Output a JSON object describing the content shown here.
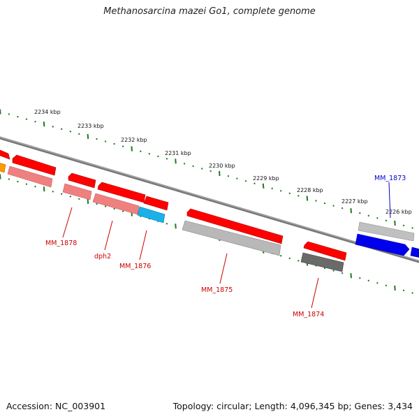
{
  "title": "Methanosarcina mazei Go1, complete genome",
  "footer": {
    "accession": "Accession: NC_003901",
    "summary": "Topology: circular; Length: 4,096,345 bp; Genes: 3,434"
  },
  "scale_labels": [
    "2234 kbp",
    "2233 kbp",
    "2232 kbp",
    "2231 kbp",
    "2230 kbp",
    "2229 kbp",
    "2228 kbp",
    "2227 kbp",
    "2226 kbp"
  ],
  "gene_labels": [
    "MM_1878",
    "dph2",
    "MM_1876",
    "MM_1875",
    "MM_1874",
    "MM_1873"
  ],
  "colors": {
    "backbone": "#8a8a8a",
    "tick": "#1f7a1f",
    "gene_red": "#ff0000",
    "gene_pink": "#f08080",
    "gene_grey": "#b8b8b8",
    "gene_darkgrey": "#6a6a6a",
    "gene_cyan": "#1ab0e8",
    "gene_blue": "#0000ee",
    "gene_orange": "#ff9900",
    "label_red": "#cc0000",
    "label_blue": "#0000cc"
  }
}
